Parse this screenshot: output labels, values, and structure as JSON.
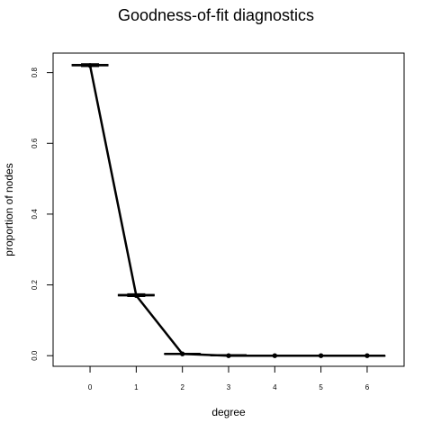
{
  "chart_data": {
    "type": "line",
    "title": "Goodness-of-fit diagnostics",
    "xlabel": "degree",
    "ylabel": "proportion of nodes",
    "xlim": [
      -0.8,
      6.8
    ],
    "ylim": [
      -0.03,
      0.855
    ],
    "x_ticks": [
      "0",
      "1",
      "2",
      "3",
      "4",
      "5",
      "6"
    ],
    "y_ticks": [
      "0.0",
      "0.2",
      "0.4",
      "0.6",
      "0.8"
    ],
    "grid": false,
    "legend": "none",
    "observed": {
      "x": [
        0,
        1,
        2,
        3,
        4,
        5,
        6
      ],
      "y": [
        0.82,
        0.17,
        0.005,
        0.0,
        0.0,
        0.0,
        0.0
      ]
    },
    "boxplots": [
      {
        "x": 0,
        "whisker_low": 0.817,
        "q1": 0.819,
        "median": 0.821,
        "q3": 0.823,
        "whisker_high": 0.825
      },
      {
        "x": 1,
        "whisker_low": 0.167,
        "q1": 0.169,
        "median": 0.171,
        "q3": 0.173,
        "whisker_high": 0.175
      },
      {
        "x": 2,
        "whisker_low": 0.003,
        "q1": 0.004,
        "median": 0.005,
        "q3": 0.006,
        "whisker_high": 0.007
      },
      {
        "x": 3,
        "whisker_low": 0.0,
        "q1": 0.0,
        "median": 0.001,
        "q3": 0.001,
        "whisker_high": 0.002
      },
      {
        "x": 4,
        "whisker_low": 0.0,
        "q1": 0.0,
        "median": 0.0,
        "q3": 0.0,
        "whisker_high": 0.001
      },
      {
        "x": 5,
        "whisker_low": 0.0,
        "q1": 0.0,
        "median": 0.0,
        "q3": 0.0,
        "whisker_high": 0.001
      },
      {
        "x": 6,
        "whisker_low": 0.0,
        "q1": 0.0,
        "median": 0.0,
        "q3": 0.0,
        "whisker_high": 0.001
      }
    ],
    "colors": {
      "line": "#000000",
      "box": "#000000",
      "axis": "#000000",
      "background": "#ffffff"
    }
  }
}
